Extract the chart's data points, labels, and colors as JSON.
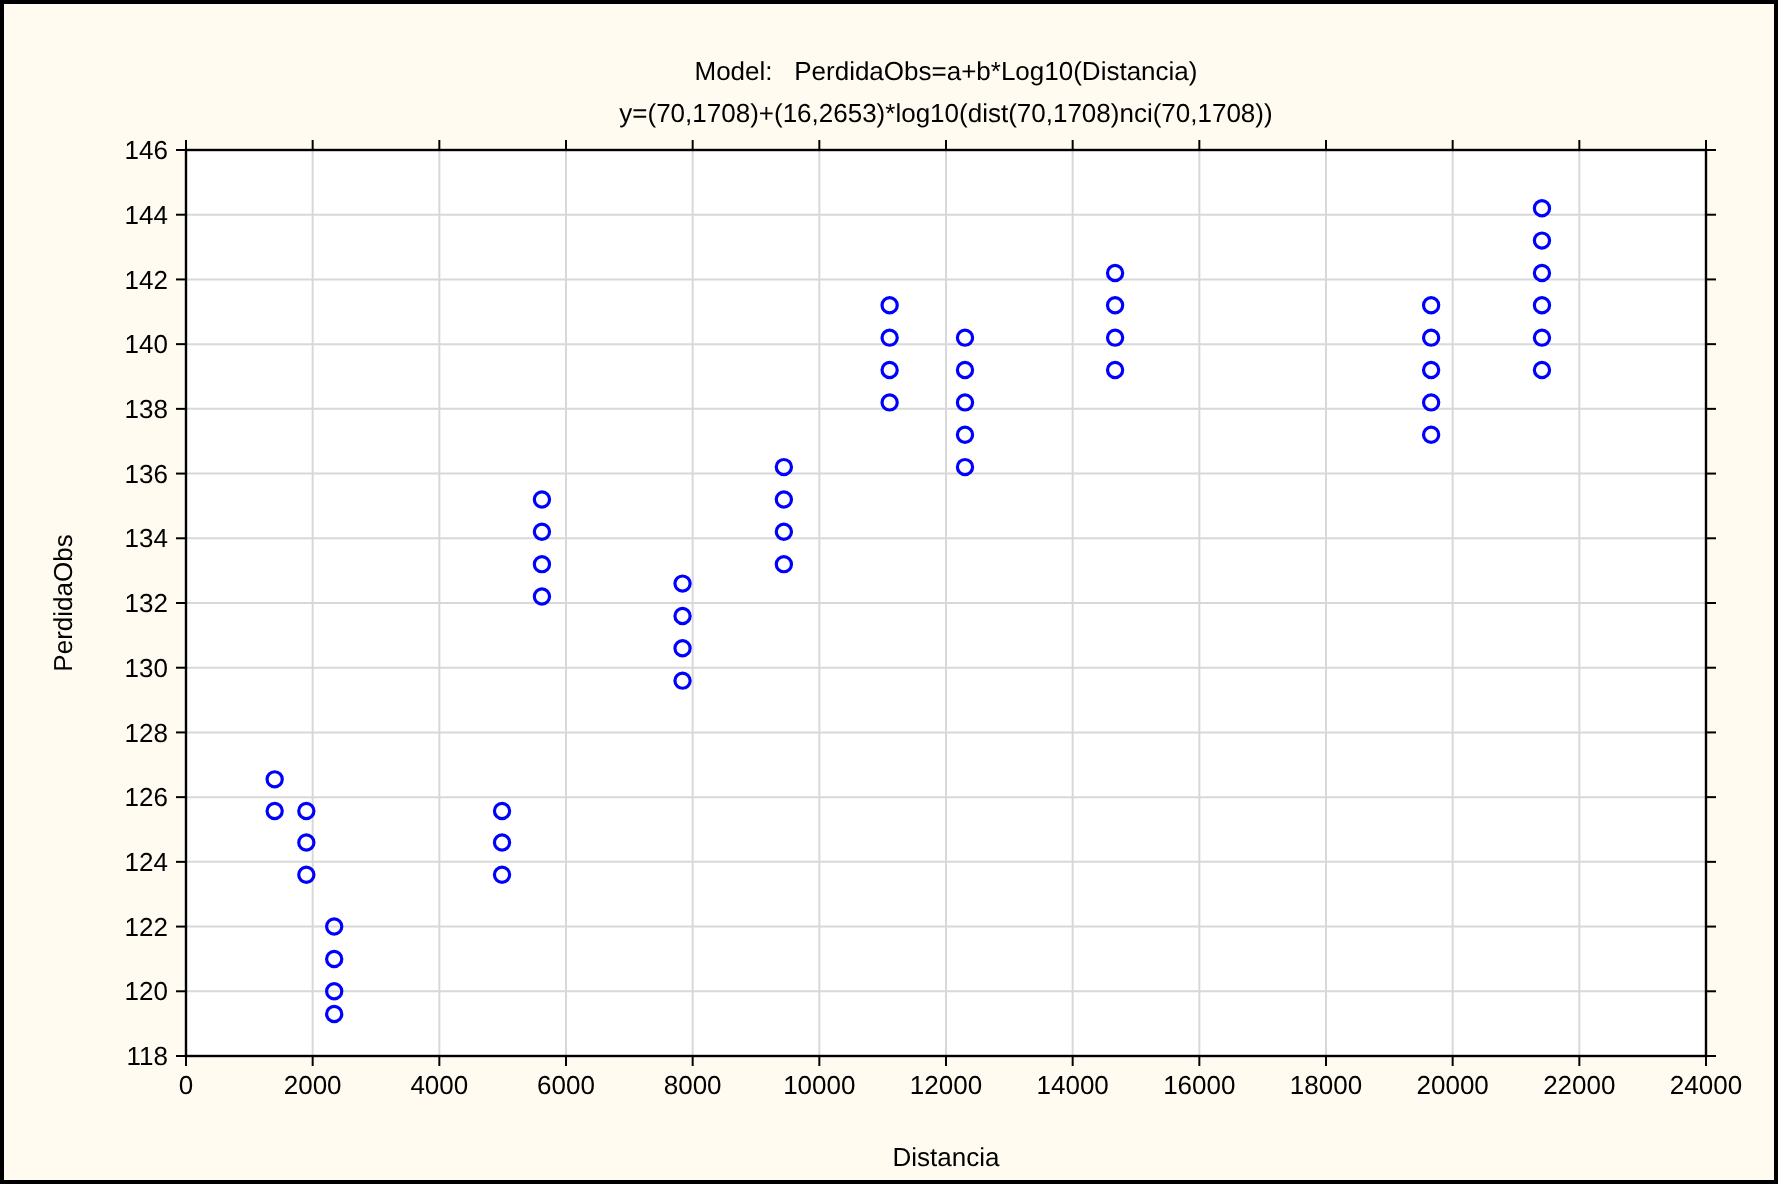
{
  "chart_data": {
    "type": "scatter",
    "title": "Model:   PerdidaObs=a+b*Log10(Distancia)",
    "subtitle": "y=(70,1708)+(16,2653)*log10(dist(70,1708)nci(70,1708))",
    "xlabel": "Distancia",
    "ylabel": "PerdidaObs",
    "xlim": [
      0,
      24000
    ],
    "xticks": [
      0,
      2000,
      4000,
      6000,
      8000,
      10000,
      12000,
      14000,
      16000,
      18000,
      20000,
      22000,
      24000
    ],
    "ylim": [
      118,
      146
    ],
    "yticks": [
      118,
      120,
      122,
      124,
      126,
      128,
      130,
      132,
      134,
      136,
      138,
      140,
      142,
      144,
      146
    ],
    "grid": true,
    "marker": "circle",
    "series": [
      {
        "color": "#0000ff",
        "x": [
          1400,
          1400,
          1900,
          1900,
          1900,
          2340,
          2340,
          2340,
          2340,
          4990,
          4990,
          4990,
          5620,
          5620,
          5620,
          5620,
          7840,
          7840,
          7840,
          7840,
          9440,
          9440,
          9440,
          9440,
          11110,
          11110,
          11110,
          11110,
          12300,
          12300,
          12300,
          12300,
          12300,
          14670,
          14670,
          14670,
          14670,
          19660,
          19660,
          19660,
          19660,
          19660,
          21410,
          21410,
          21410,
          21410,
          21410,
          21410
        ],
        "values": [
          126.55,
          125.57,
          125.57,
          124.6,
          123.6,
          122.0,
          121.0,
          120.0,
          119.3,
          125.57,
          124.6,
          123.6,
          135.2,
          134.2,
          133.2,
          132.2,
          132.6,
          131.6,
          130.6,
          129.6,
          136.2,
          135.2,
          134.2,
          133.2,
          141.2,
          140.2,
          139.2,
          138.2,
          140.2,
          139.2,
          138.2,
          137.2,
          136.2,
          142.2,
          141.2,
          140.2,
          139.2,
          141.2,
          140.2,
          139.2,
          138.2,
          137.2,
          144.2,
          143.2,
          142.2,
          141.2,
          140.2,
          139.2
        ]
      }
    ]
  }
}
